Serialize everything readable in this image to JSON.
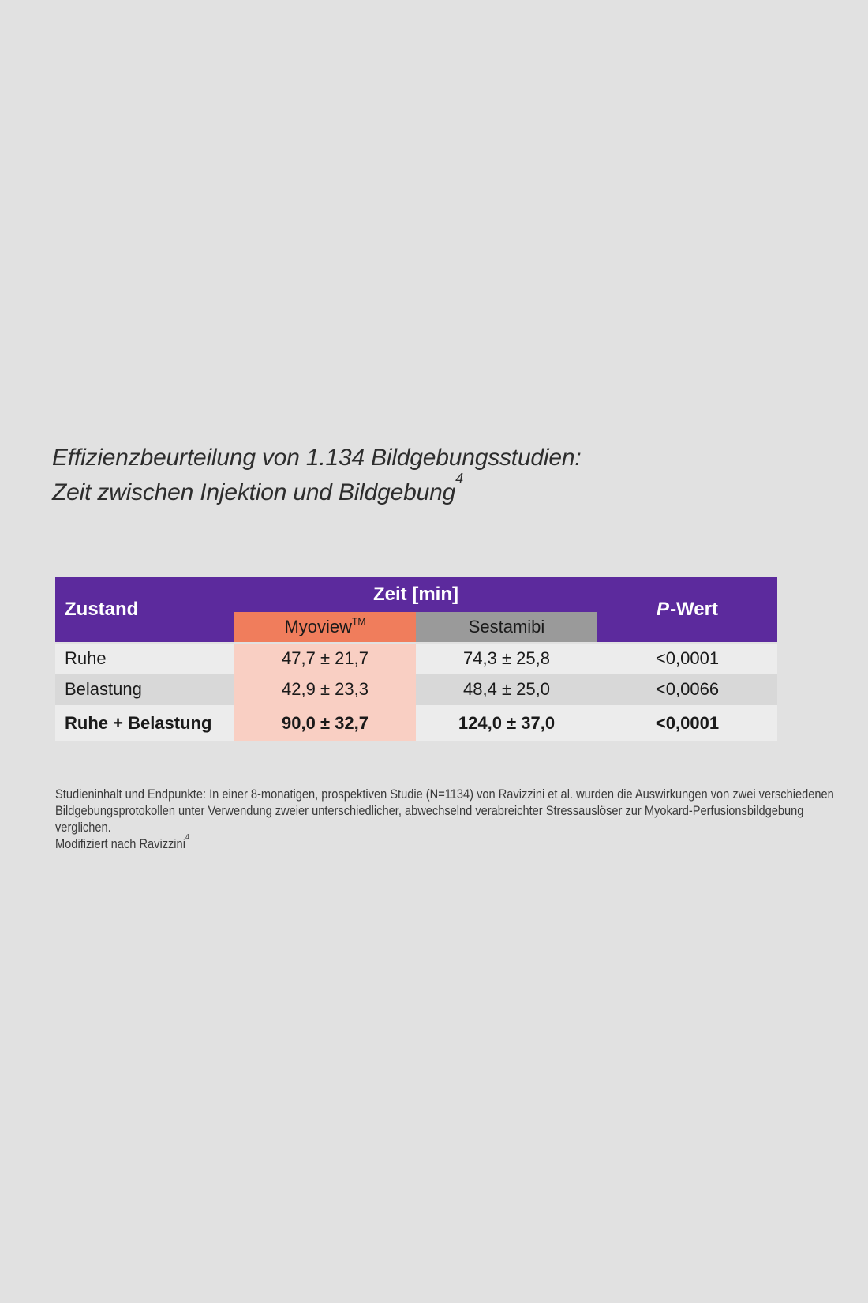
{
  "title": {
    "line1": "Effizienzbeurteilung von 1.134 Bildgebungsstudien:",
    "line2": "Zeit zwischen Injektion und Bildgebung",
    "superscript": "4"
  },
  "table": {
    "colors": {
      "page_bg": "#e1e1e1",
      "header_purple": "#5c2a9d",
      "myoview_orange": "#f07d5c",
      "myoview_tint": "#f9cfc3",
      "sestamibi_gray": "#9a9a9a",
      "row_light": "#ececec",
      "row_mid": "#d8d8d8",
      "header_text": "#ffffff",
      "body_text": "#1a1a1a",
      "title_text": "#2d2d2d",
      "footnote_text": "#3a3a3a"
    },
    "header": {
      "col_zustand": "Zustand",
      "col_zeit": "Zeit [min]",
      "col_pwert_prefix": "P",
      "col_pwert_suffix": "-Wert",
      "sub_myoview": "Myoview",
      "sub_myoview_tm": "TM",
      "sub_sestamibi": "Sestamibi"
    },
    "rows": [
      {
        "zustand": "Ruhe",
        "myoview": "47,7 ± 21,7",
        "sestamibi": "74,3 ± 25,8",
        "pwert": "<0,0001"
      },
      {
        "zustand": "Belastung",
        "myoview": "42,9 ± 23,3",
        "sestamibi": "48,4 ± 25,0",
        "pwert": "<0,0066"
      },
      {
        "zustand": "Ruhe + Belastung",
        "myoview": "90,0 ± 32,7",
        "sestamibi": "124,0 ± 37,0",
        "pwert": "<0,0001"
      }
    ]
  },
  "footnote": {
    "lines": [
      "Studieninhalt und Endpunkte: In einer 8-monatigen, prospektiven Studie (N=1134) von Ravizzini et al. wurden die Auswirkungen von zwei verschiedenen",
      "Bildgebungsprotokollen unter Verwendung zweier unterschiedlicher, abwechselnd verabreichter Stressauslöser zur Myokard-Perfusionsbildgebung",
      "verglichen."
    ],
    "modified": "Modifiziert nach Ravizzini",
    "modified_sup": "4"
  }
}
